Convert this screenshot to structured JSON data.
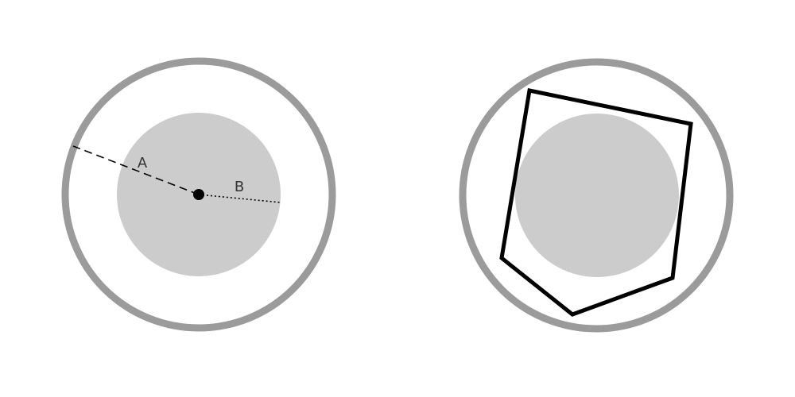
{
  "labels": {
    "a": "A",
    "b": "B"
  },
  "colors": {
    "outer_ring": "#9b9b9b",
    "inner_disk": "#cccccc",
    "ink": "#000000",
    "background": "#ffffff"
  }
}
